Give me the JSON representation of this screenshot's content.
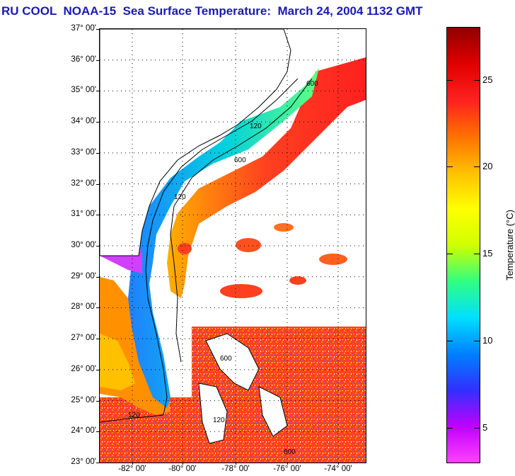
{
  "title": "RU COOL  NOAA-15  Sea Surface Temperature:  March 24, 2004 1132 GMT",
  "map": {
    "lat_labels": [
      "37° 00'",
      "36° 00'",
      "35° 00'",
      "34° 00'",
      "33° 00'",
      "32° 00'",
      "31° 00'",
      "30° 00'",
      "29° 00'",
      "28° 00'",
      "27° 00'",
      "26° 00'",
      "25° 00'",
      "24° 00'",
      "23° 00'"
    ],
    "lon_labels": [
      "-82° 00'",
      "-80° 00'",
      "-78° 00'",
      "-76° 00'",
      "-74° 00'"
    ],
    "contour_labels": [
      "120",
      "600"
    ],
    "colors": {
      "land": "#ffffff",
      "cloud": "#ffffff",
      "contour": "#000000",
      "grid_dots": "#000000"
    }
  },
  "colorbar": {
    "title": "Temperature (°C)",
    "tick_labels": [
      "5",
      "10",
      "15",
      "20",
      "25"
    ],
    "tick_values": [
      5,
      10,
      15,
      20,
      25
    ],
    "range": [
      3,
      28
    ],
    "colors": [
      "#ff40ff",
      "#c000ff",
      "#3030ff",
      "#0080ff",
      "#00e0ff",
      "#30ff80",
      "#d0ff00",
      "#ffff00",
      "#ffc000",
      "#ff7000",
      "#ff2020",
      "#e00000",
      "#900000"
    ]
  }
}
